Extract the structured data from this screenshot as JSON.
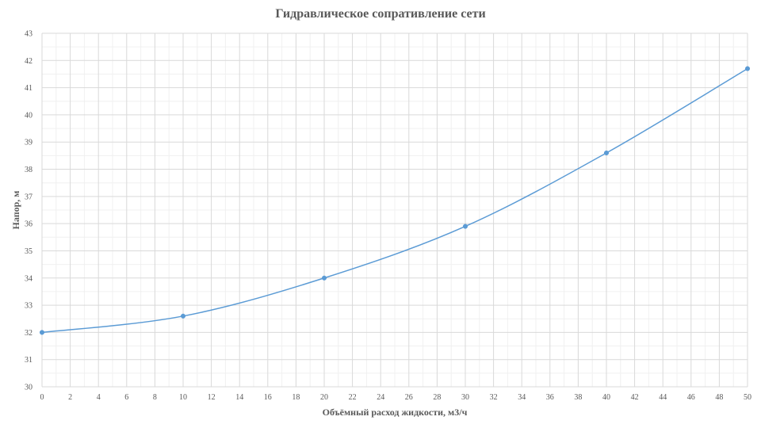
{
  "chart_data": {
    "type": "line",
    "title": "Гидравлическое сопративление сети",
    "xlabel": "Объёмный расход жидкости, м3/ч",
    "ylabel": "Напор, м",
    "xlim": [
      0,
      50
    ],
    "ylim": [
      30,
      43
    ],
    "x_ticks": [
      0,
      2,
      4,
      6,
      8,
      10,
      12,
      14,
      16,
      18,
      20,
      22,
      24,
      26,
      28,
      30,
      32,
      34,
      36,
      38,
      40,
      42,
      44,
      46,
      48,
      50
    ],
    "y_ticks": [
      30,
      31,
      32,
      33,
      34,
      35,
      36,
      37,
      38,
      39,
      40,
      41,
      42,
      43
    ],
    "grid": true,
    "legend": "none",
    "series": [
      {
        "x": [
          0,
          10,
          20,
          30,
          40,
          50
        ],
        "y": [
          32.0,
          32.6,
          34.0,
          35.9,
          38.6,
          41.7
        ],
        "color": "#5b9bd5",
        "smooth": true,
        "markers": true
      }
    ]
  }
}
